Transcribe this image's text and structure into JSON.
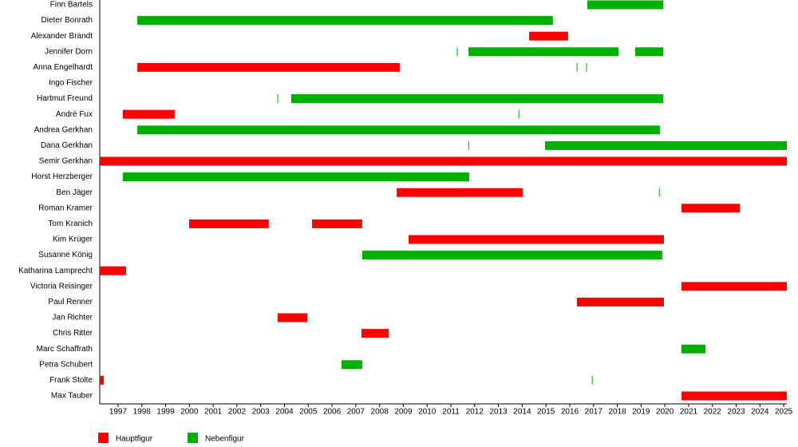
{
  "chart_data": {
    "type": "timeline",
    "categories": [
      "Finn Bartels",
      "Dieter Bonrath",
      "Alexander Brandt",
      "Jennifer Dorn",
      "Anna Engelhardt",
      "Ingo Fischer",
      "Hartmut Freund",
      "André Fux",
      "Andrea Gerkhan",
      "Dana Gerkhan",
      "Semir Gerkhan",
      "Horst Herzberger",
      "Ben Jäger",
      "Roman Kramer",
      "Tom Kranich",
      "Kim Krüger",
      "Susanne König",
      "Katharina Lamprecht",
      "Victoria Reisinger",
      "Paul Renner",
      "Jan Richter",
      "Chris Ritter",
      "Marc Schaffrath",
      "Petra Schubert",
      "Frank Stolte",
      "Max Tauber"
    ],
    "series": [
      {
        "name": "Hauptfigur",
        "color": "#ff0000",
        "bars": [
          {
            "category": 2,
            "start": 2014.29,
            "end": 2015.93
          },
          {
            "category": 4,
            "start": 1997.81,
            "end": 2008.85
          },
          {
            "category": 7,
            "start": 1997.2,
            "end": 1999.38
          },
          {
            "category": 10,
            "start": 1996.23,
            "end": 2025.13
          },
          {
            "category": 12,
            "start": 2008.72,
            "end": 2014.02
          },
          {
            "category": 13,
            "start": 2020.7,
            "end": 2023.15
          },
          {
            "category": 14,
            "start": 1999.99,
            "end": 2003.34
          },
          {
            "category": 14,
            "start": 2005.16,
            "end": 2007.27
          },
          {
            "category": 15,
            "start": 2009.22,
            "end": 2019.96
          },
          {
            "category": 17,
            "start": 1996.23,
            "end": 1997.34
          },
          {
            "category": 18,
            "start": 2020.7,
            "end": 2025.13
          },
          {
            "category": 19,
            "start": 2016.3,
            "end": 2019.96
          },
          {
            "category": 20,
            "start": 2003.71,
            "end": 2004.96
          },
          {
            "category": 21,
            "start": 2007.24,
            "end": 2008.38
          },
          {
            "category": 24,
            "start": 1996.23,
            "end": 1996.4
          },
          {
            "category": 25,
            "start": 2020.7,
            "end": 2025.13
          }
        ]
      },
      {
        "name": "Nebenfigur",
        "color": "#00b000",
        "bars": [
          {
            "category": 0,
            "start": 2016.74,
            "end": 2019.93
          },
          {
            "category": 1,
            "start": 1997.81,
            "end": 2015.29
          },
          {
            "category": 3,
            "start": 2011.25,
            "end": 2011.28
          },
          {
            "category": 3,
            "start": 2011.74,
            "end": 2018.05
          },
          {
            "category": 3,
            "start": 2018.75,
            "end": 2019.93
          },
          {
            "category": 4,
            "start": 2016.29,
            "end": 2016.32
          },
          {
            "category": 4,
            "start": 2016.69,
            "end": 2016.72
          },
          {
            "category": 6,
            "start": 2003.7,
            "end": 2003.73
          },
          {
            "category": 6,
            "start": 2004.28,
            "end": 2019.93
          },
          {
            "category": 7,
            "start": 2013.84,
            "end": 2013.87
          },
          {
            "category": 8,
            "start": 1997.81,
            "end": 2019.79
          },
          {
            "category": 9,
            "start": 2011.73,
            "end": 2011.76
          },
          {
            "category": 9,
            "start": 2014.96,
            "end": 2025.13
          },
          {
            "category": 11,
            "start": 1997.2,
            "end": 2011.77
          },
          {
            "category": 12,
            "start": 2019.75,
            "end": 2019.78
          },
          {
            "category": 16,
            "start": 2007.27,
            "end": 2019.89
          },
          {
            "category": 22,
            "start": 2020.7,
            "end": 2021.71
          },
          {
            "category": 23,
            "start": 2006.4,
            "end": 2007.27
          },
          {
            "category": 24,
            "start": 2016.93,
            "end": 2016.96
          }
        ]
      }
    ],
    "xlim": [
      1996.23,
      2025.13
    ],
    "xticks": [
      1997,
      1998,
      1999,
      2000,
      2001,
      2002,
      2003,
      2004,
      2005,
      2006,
      2007,
      2008,
      2009,
      2010,
      2011,
      2012,
      2013,
      2014,
      2015,
      2016,
      2017,
      2018,
      2019,
      2020,
      2021,
      2022,
      2023,
      2024,
      2025
    ]
  }
}
